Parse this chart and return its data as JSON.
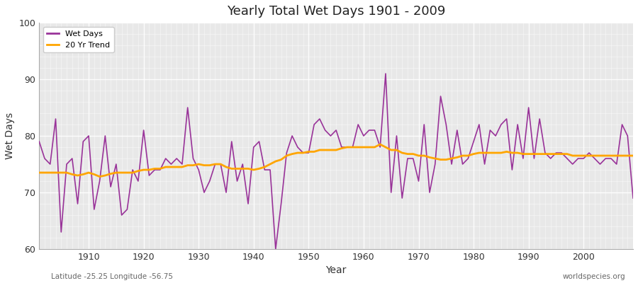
{
  "title": "Yearly Total Wet Days 1901 - 2009",
  "xlabel": "Year",
  "ylabel": "Wet Days",
  "subtitle_left": "Latitude -25.25 Longitude -56.75",
  "subtitle_right": "worldspecies.org",
  "ylim": [
    60,
    100
  ],
  "xlim": [
    1901,
    2009
  ],
  "yticks": [
    60,
    70,
    80,
    90,
    100
  ],
  "xticks": [
    1910,
    1920,
    1930,
    1940,
    1950,
    1960,
    1970,
    1980,
    1990,
    2000
  ],
  "line_color": "#993399",
  "trend_color": "#FFA500",
  "background_color": "#FFFFFF",
  "plot_bg_color": "#E8E8E8",
  "grid_color": "#FFFFFF",
  "years": [
    1901,
    1902,
    1903,
    1904,
    1905,
    1906,
    1907,
    1908,
    1909,
    1910,
    1911,
    1912,
    1913,
    1914,
    1915,
    1916,
    1917,
    1918,
    1919,
    1920,
    1921,
    1922,
    1923,
    1924,
    1925,
    1926,
    1927,
    1928,
    1929,
    1930,
    1931,
    1932,
    1933,
    1934,
    1935,
    1936,
    1937,
    1938,
    1939,
    1940,
    1941,
    1942,
    1943,
    1944,
    1945,
    1946,
    1947,
    1948,
    1949,
    1950,
    1951,
    1952,
    1953,
    1954,
    1955,
    1956,
    1957,
    1958,
    1959,
    1960,
    1961,
    1962,
    1963,
    1964,
    1965,
    1966,
    1967,
    1968,
    1969,
    1970,
    1971,
    1972,
    1973,
    1974,
    1975,
    1976,
    1977,
    1978,
    1979,
    1980,
    1981,
    1982,
    1983,
    1984,
    1985,
    1986,
    1987,
    1988,
    1989,
    1990,
    1991,
    1992,
    1993,
    1994,
    1995,
    1996,
    1997,
    1998,
    1999,
    2000,
    2001,
    2002,
    2003,
    2004,
    2005,
    2006,
    2007,
    2008,
    2009
  ],
  "wet_days": [
    79,
    76,
    75,
    83,
    63,
    75,
    76,
    68,
    79,
    80,
    67,
    72,
    80,
    71,
    75,
    66,
    67,
    74,
    72,
    81,
    73,
    74,
    74,
    76,
    75,
    76,
    75,
    85,
    76,
    74,
    70,
    72,
    75,
    75,
    70,
    79,
    72,
    75,
    68,
    78,
    79,
    74,
    74,
    60,
    68,
    77,
    80,
    78,
    77,
    77,
    82,
    83,
    81,
    80,
    81,
    78,
    78,
    78,
    82,
    80,
    81,
    81,
    78,
    91,
    70,
    80,
    69,
    76,
    76,
    72,
    82,
    70,
    75,
    87,
    82,
    75,
    81,
    75,
    76,
    79,
    82,
    75,
    81,
    80,
    82,
    83,
    74,
    82,
    76,
    85,
    76,
    83,
    77,
    76,
    77,
    77,
    76,
    75,
    76,
    76,
    77,
    76,
    75,
    76,
    76,
    75,
    82,
    80,
    69
  ],
  "trend": [
    73.5,
    73.5,
    73.5,
    73.5,
    73.5,
    73.5,
    73.2,
    73.0,
    73.2,
    73.5,
    73.2,
    72.8,
    73.0,
    73.3,
    73.5,
    73.5,
    73.5,
    73.5,
    73.8,
    74.0,
    74.0,
    74.2,
    74.2,
    74.5,
    74.5,
    74.5,
    74.5,
    74.8,
    74.8,
    75.0,
    74.8,
    74.8,
    75.0,
    75.0,
    74.5,
    74.2,
    74.2,
    74.2,
    74.2,
    74.0,
    74.2,
    74.5,
    75.0,
    75.5,
    75.8,
    76.5,
    76.8,
    77.0,
    77.0,
    77.2,
    77.2,
    77.5,
    77.5,
    77.5,
    77.5,
    77.8,
    78.0,
    78.0,
    78.0,
    78.0,
    78.0,
    78.0,
    78.5,
    78.0,
    77.5,
    77.5,
    77.0,
    76.8,
    76.8,
    76.5,
    76.5,
    76.2,
    76.0,
    75.8,
    75.8,
    76.0,
    76.2,
    76.5,
    76.5,
    76.8,
    77.0,
    77.0,
    77.0,
    77.0,
    77.0,
    77.2,
    77.0,
    77.0,
    76.8,
    76.8,
    76.8,
    76.8,
    76.8,
    76.8,
    76.8,
    76.8,
    76.8,
    76.5,
    76.5,
    76.5,
    76.5,
    76.5,
    76.5,
    76.5,
    76.5,
    76.5,
    76.5,
    76.5,
    76.5
  ]
}
